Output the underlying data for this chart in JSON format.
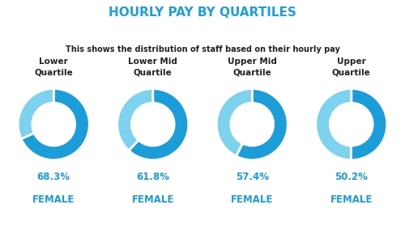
{
  "title": "HOURLY PAY BY QUARTILES",
  "subtitle": "This shows the distribution of staff based on their hourly pay",
  "title_color": "#1DA1D8",
  "subtitle_color": "#222222",
  "quartile_labels": [
    "Lower\nQuartile",
    "Lower Mid\nQuartile",
    "Upper Mid\nQuartile",
    "Upper\nQuartile"
  ],
  "female_pct": [
    68.3,
    61.8,
    57.4,
    50.2
  ],
  "female_color": "#1A9DD9",
  "male_color": "#7DD3EF",
  "label_color": "#1A9DD9",
  "background_color": "#ffffff",
  "label_fontsize": 7.5,
  "pct_fontsize": 8.5
}
